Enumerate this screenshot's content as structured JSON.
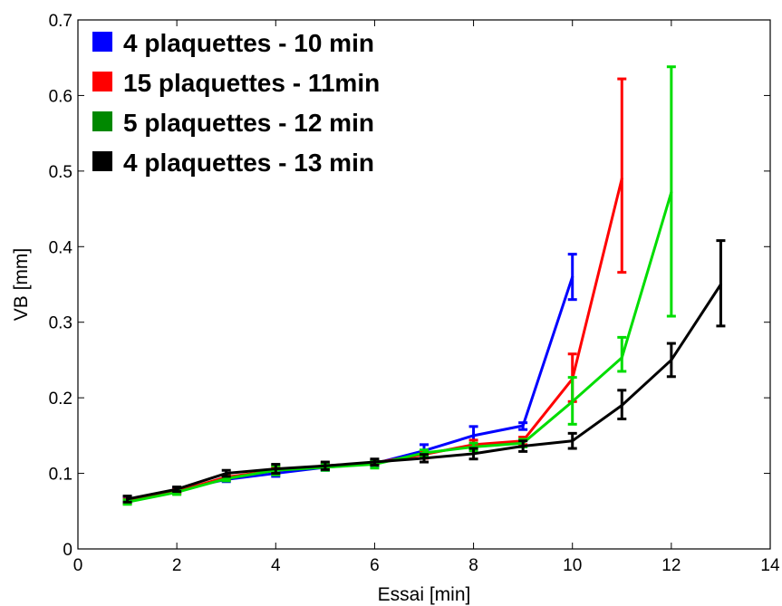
{
  "chart_data": {
    "type": "line",
    "xlabel": "Essai [min]",
    "ylabel": "VB [mm]",
    "xlim": [
      0,
      14
    ],
    "ylim": [
      0,
      0.7
    ],
    "xticks": [
      0,
      2,
      4,
      6,
      8,
      10,
      12,
      14
    ],
    "yticks": [
      0,
      0.1,
      0.2,
      0.3,
      0.4,
      0.5,
      0.6,
      0.7
    ],
    "xtick_labels": [
      "0",
      "2",
      "4",
      "6",
      "8",
      "10",
      "12",
      "14"
    ],
    "ytick_labels": [
      "0",
      "0.1",
      "0.2",
      "0.3",
      "0.4",
      "0.5",
      "0.6",
      "0.7"
    ],
    "grid": false,
    "legend_position": "top-left",
    "error_bars": true,
    "series": [
      {
        "name": "4 plaquettes - 10 min",
        "color": "#0000ff",
        "x": [
          1,
          2,
          3,
          4,
          5,
          6,
          7,
          8,
          9,
          10
        ],
        "y": [
          0.065,
          0.078,
          0.092,
          0.1,
          0.108,
          0.113,
          0.13,
          0.15,
          0.163,
          0.36
        ],
        "err_low": [
          0.004,
          0.003,
          0.003,
          0.004,
          0.004,
          0.003,
          0.006,
          0.012,
          0.005,
          0.03
        ],
        "err_high": [
          0.004,
          0.003,
          0.003,
          0.004,
          0.004,
          0.003,
          0.008,
          0.012,
          0.004,
          0.03
        ]
      },
      {
        "name": "15 plaquettes - 11min",
        "color": "#ff0000",
        "x": [
          1,
          2,
          3,
          4,
          5,
          6,
          7,
          8,
          9,
          10,
          11
        ],
        "y": [
          0.063,
          0.076,
          0.095,
          0.104,
          0.11,
          0.114,
          0.125,
          0.138,
          0.143,
          0.225,
          0.49
        ],
        "err_low": [
          0.003,
          0.003,
          0.003,
          0.004,
          0.004,
          0.003,
          0.005,
          0.006,
          0.005,
          0.03,
          0.124
        ],
        "err_high": [
          0.003,
          0.003,
          0.003,
          0.004,
          0.004,
          0.003,
          0.005,
          0.006,
          0.005,
          0.033,
          0.132
        ]
      },
      {
        "name": "5 plaquettes - 12 min",
        "color": "#00dd00",
        "x": [
          1,
          2,
          3,
          4,
          5,
          6,
          7,
          8,
          9,
          10,
          11,
          12
        ],
        "y": [
          0.062,
          0.075,
          0.093,
          0.104,
          0.108,
          0.112,
          0.127,
          0.135,
          0.14,
          0.195,
          0.253,
          0.472
        ],
        "err_low": [
          0.003,
          0.003,
          0.003,
          0.006,
          0.004,
          0.005,
          0.004,
          0.005,
          0.005,
          0.03,
          0.018,
          0.164
        ],
        "err_high": [
          0.003,
          0.003,
          0.003,
          0.006,
          0.004,
          0.005,
          0.004,
          0.005,
          0.005,
          0.032,
          0.027,
          0.166
        ]
      },
      {
        "name": "4 plaquettes - 13 min",
        "color": "#000000",
        "x": [
          1,
          2,
          3,
          4,
          5,
          6,
          7,
          8,
          9,
          10,
          11,
          12,
          13
        ],
        "y": [
          0.066,
          0.079,
          0.1,
          0.106,
          0.11,
          0.115,
          0.12,
          0.126,
          0.136,
          0.143,
          0.19,
          0.25,
          0.35
        ],
        "err_low": [
          0.004,
          0.003,
          0.004,
          0.006,
          0.005,
          0.004,
          0.005,
          0.007,
          0.007,
          0.01,
          0.018,
          0.022,
          0.055
        ],
        "err_high": [
          0.004,
          0.003,
          0.004,
          0.006,
          0.005,
          0.004,
          0.005,
          0.007,
          0.007,
          0.01,
          0.02,
          0.022,
          0.058
        ]
      }
    ]
  }
}
